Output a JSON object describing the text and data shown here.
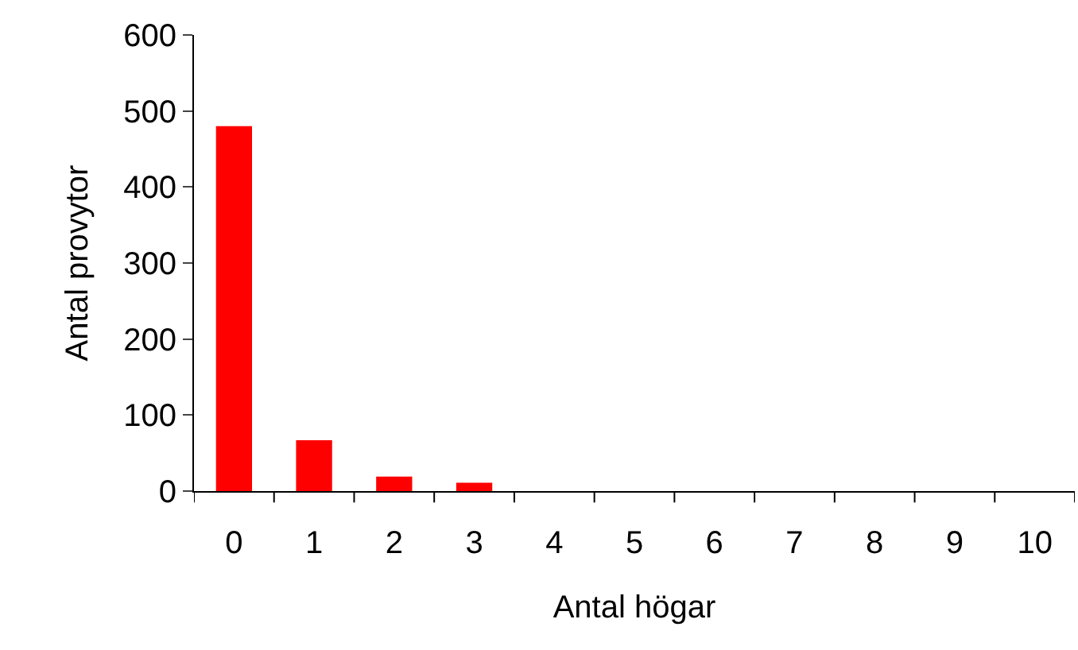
{
  "chart_data": {
    "type": "bar",
    "xlabel": "Antal högar",
    "ylabel": "Antal provytor",
    "categories": [
      "0",
      "1",
      "2",
      "3",
      "4",
      "5",
      "6",
      "7",
      "8",
      "9",
      "10"
    ],
    "values": [
      480,
      67,
      19,
      11,
      0,
      0,
      0,
      0,
      0,
      0,
      0
    ],
    "color": "#ff0000",
    "ylim": [
      0,
      600
    ],
    "yticks": [
      0,
      100,
      200,
      300,
      400,
      500,
      600
    ]
  }
}
